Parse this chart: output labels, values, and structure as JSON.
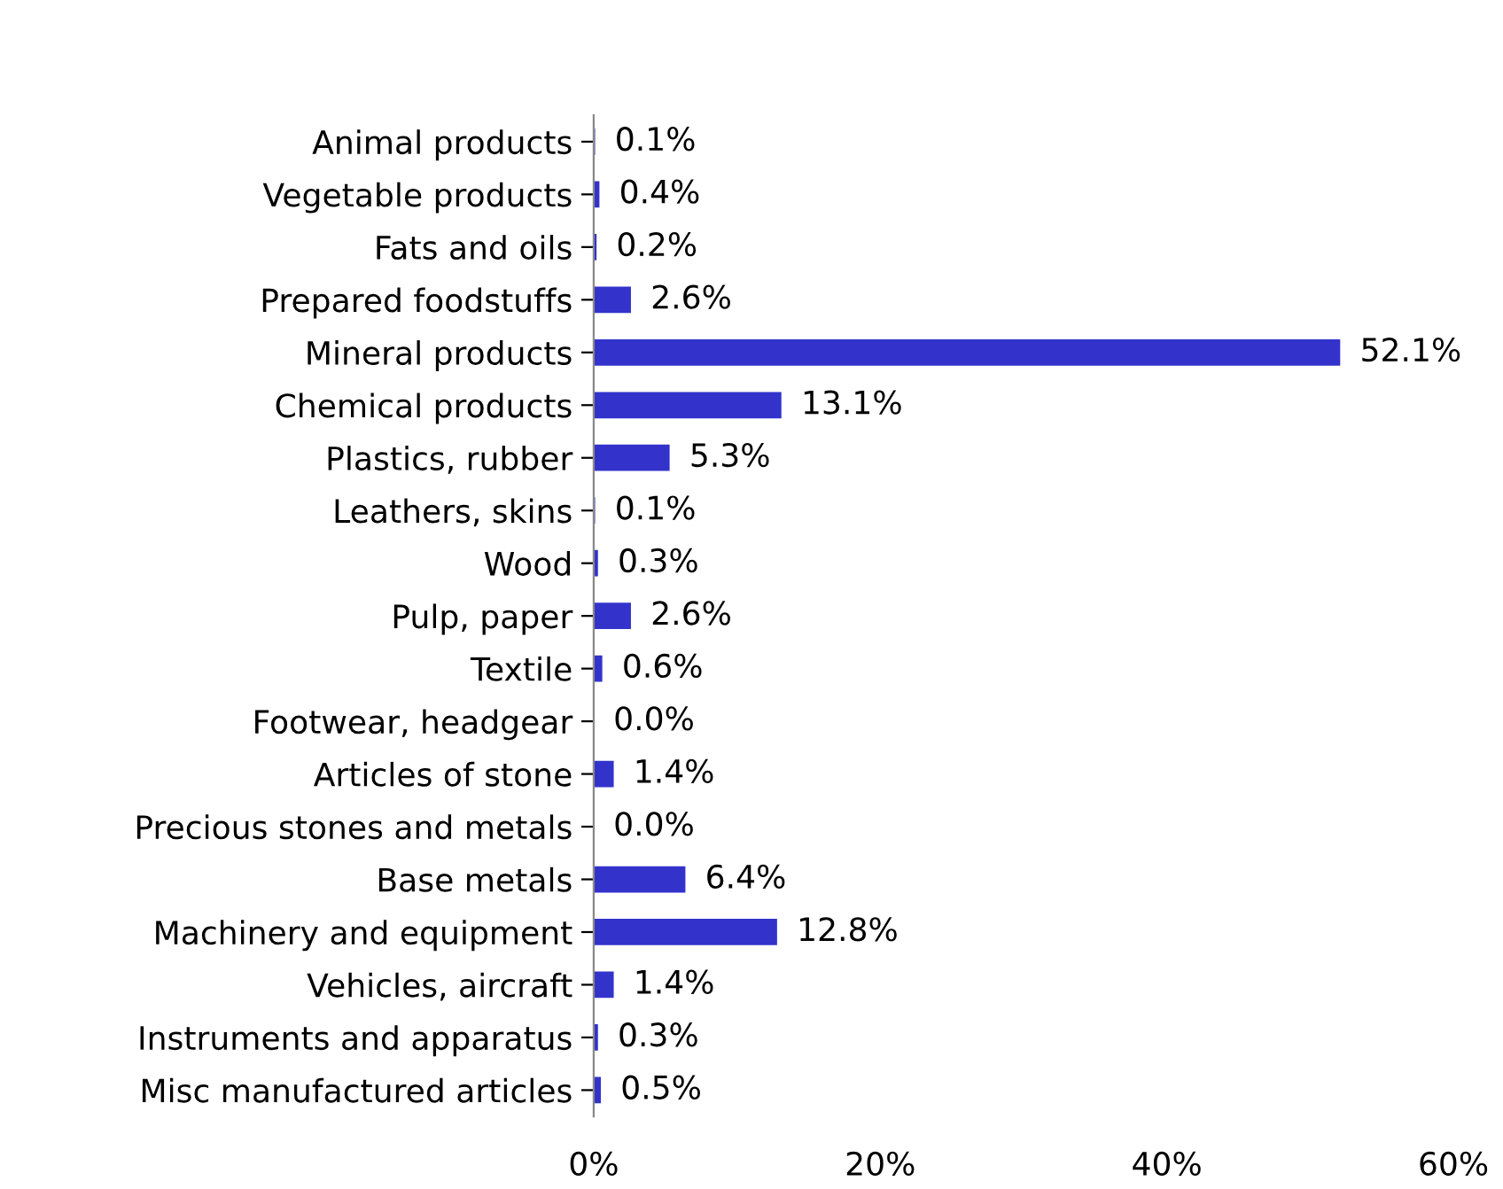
{
  "chart_data": {
    "type": "bar",
    "orientation": "horizontal",
    "categories": [
      "Animal products",
      "Vegetable products",
      "Fats and oils",
      "Prepared foodstuffs",
      "Mineral products",
      "Chemical products",
      "Plastics, rubber",
      "Leathers, skins",
      "Wood",
      "Pulp, paper",
      "Textile",
      "Footwear, headgear",
      "Articles of stone",
      "Precious stones and metals",
      "Base metals",
      "Machinery and equipment",
      "Vehicles, aircraft",
      "Instruments and apparatus",
      "Misc manufactured articles"
    ],
    "values": [
      0.1,
      0.4,
      0.2,
      2.6,
      52.1,
      13.1,
      5.3,
      0.1,
      0.3,
      2.6,
      0.6,
      0.0,
      1.4,
      0.0,
      6.4,
      12.8,
      1.4,
      0.3,
      0.5
    ],
    "value_labels": [
      "0.1%",
      "0.4%",
      "0.2%",
      "2.6%",
      "52.1%",
      "13.1%",
      "5.3%",
      "0.1%",
      "0.3%",
      "2.6%",
      "0.6%",
      "0.0%",
      "1.4%",
      "0.0%",
      "6.4%",
      "12.8%",
      "1.4%",
      "0.3%",
      "0.5%"
    ],
    "color": "#3333cc",
    "xlim": [
      0,
      60
    ],
    "xticks": [
      {
        "value": 0,
        "label": "0%"
      },
      {
        "value": 20,
        "label": "20%"
      },
      {
        "value": 40,
        "label": "40%"
      },
      {
        "value": 60,
        "label": "60%"
      }
    ],
    "grid": false,
    "legend": false
  }
}
